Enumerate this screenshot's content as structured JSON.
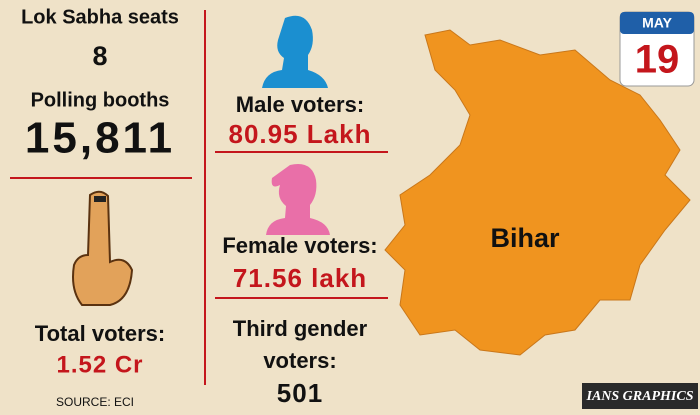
{
  "stats": {
    "seats_label": "Lok Sabha seats",
    "seats": "8",
    "booths_label": "Polling booths",
    "booths": "15,811",
    "total_label": "Total voters:",
    "total": "1.52 Cr",
    "male_label": "Male voters:",
    "male": "80.95 Lakh",
    "female_label": "Female voters:",
    "female": "71.56 lakh",
    "third_label_1": "Third gender",
    "third_label_2": "voters:",
    "third": "501"
  },
  "calendar": {
    "month": "MAY",
    "day": "19"
  },
  "map": {
    "label": "Bihar"
  },
  "footer": {
    "source": "SOURCE: ECI",
    "credit": "IANS GRAPHICS"
  }
}
